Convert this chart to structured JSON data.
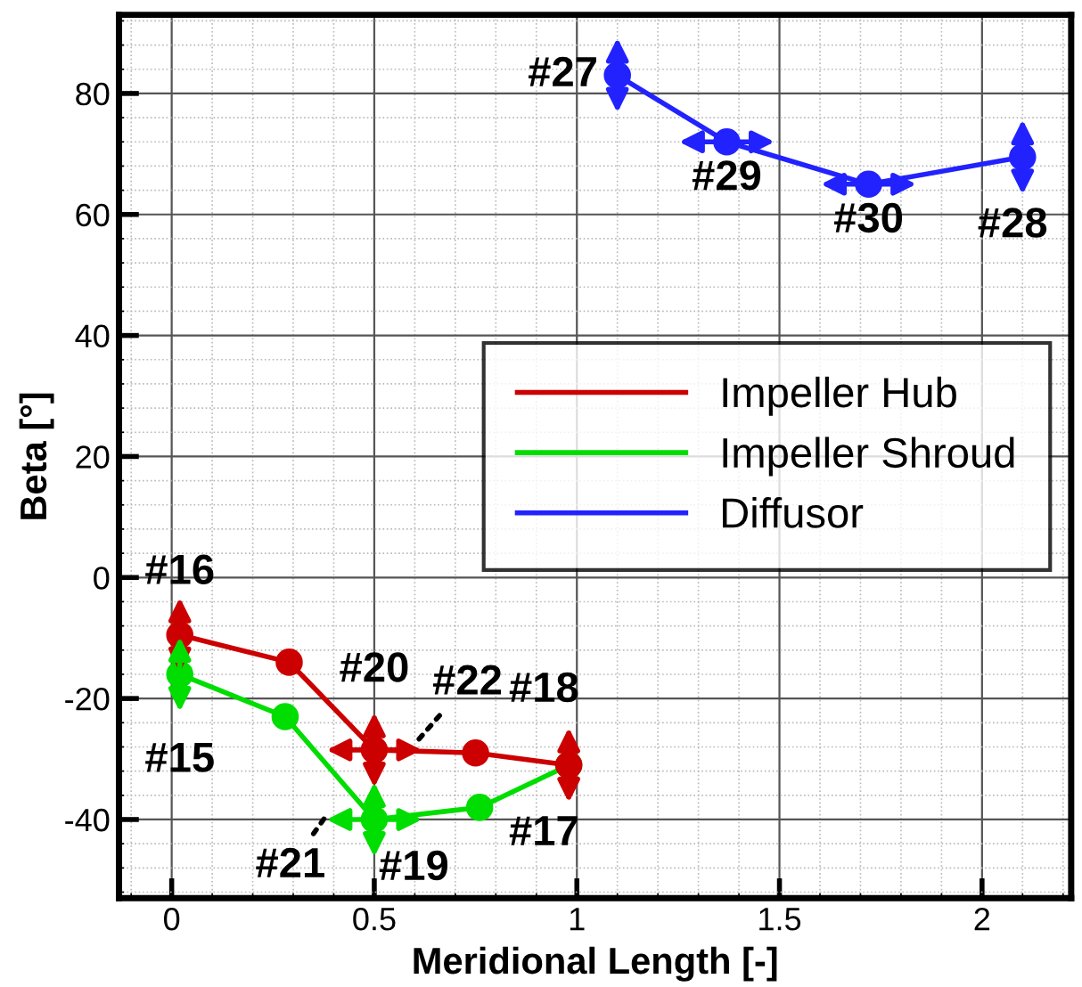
{
  "chart_data": {
    "type": "line",
    "xlabel": "Meridional Length [-]",
    "ylabel": "Beta [°]",
    "xlim": [
      -0.13,
      2.22
    ],
    "ylim": [
      -53,
      93
    ],
    "xticks": [
      0,
      0.5,
      1,
      1.5,
      2
    ],
    "yticks": [
      -40,
      -20,
      0,
      20,
      40,
      60,
      80
    ],
    "grid": true,
    "legend": "right",
    "marker": "circle",
    "line_style": "solid",
    "series": [
      {
        "name": "Impeller Hub",
        "color": "#cc0000",
        "x": [
          0.02,
          0.29,
          0.5,
          0.75,
          0.98
        ],
        "values": [
          -9.5,
          -14,
          -28.5,
          -29,
          -31
        ]
      },
      {
        "name": "Impeller Shroud",
        "color": "#00dd00",
        "x": [
          0.02,
          0.28,
          0.5,
          0.76,
          0.98
        ],
        "values": [
          -16,
          -23,
          -40,
          -38,
          -31
        ]
      },
      {
        "name": "Diffusor",
        "color": "#2222ff",
        "x": [
          1.1,
          1.37,
          1.72,
          2.1
        ],
        "values": [
          83,
          72,
          65,
          69.5
        ]
      }
    ],
    "annotations": [
      {
        "text": "#16",
        "x": 0.02,
        "y": -9.5
      },
      {
        "text": "#15",
        "x": 0.02,
        "y": -16
      },
      {
        "text": "#20",
        "x": 0.5,
        "y": -28.5
      },
      "#22",
      "#21",
      {
        "text": "#19",
        "x": 0.5,
        "y": -40
      },
      {
        "text": "#18",
        "x": 0.98,
        "y": -31
      },
      {
        "text": "#17",
        "x": 0.98,
        "y": -31
      },
      {
        "text": "#27",
        "x": 1.1,
        "y": 83
      },
      {
        "text": "#29",
        "x": 1.37,
        "y": 72
      },
      {
        "text": "#30",
        "x": 1.72,
        "y": 65
      },
      {
        "text": "#28",
        "x": 2.1,
        "y": 69.5
      }
    ]
  }
}
